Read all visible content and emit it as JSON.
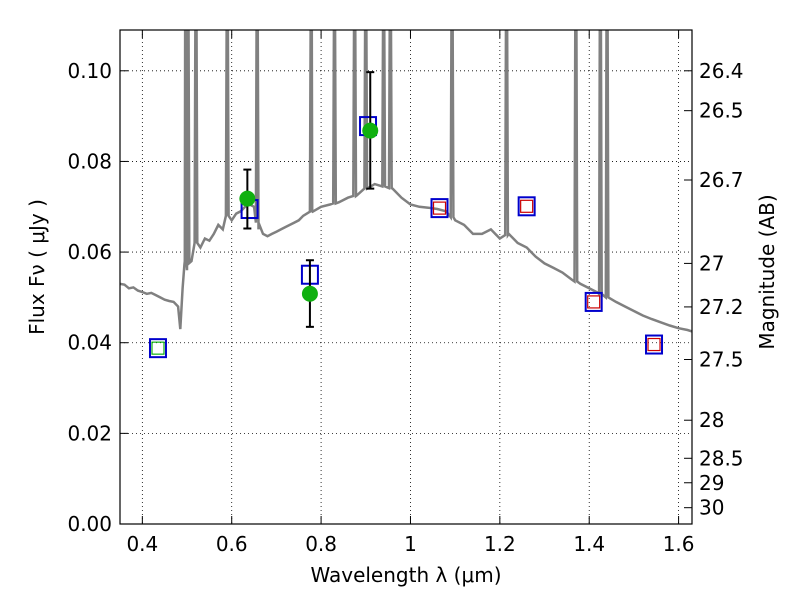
{
  "chart_data": {
    "type": "scatter",
    "xlabel": "Wavelength  λ (μm)",
    "ylabel": "Flux  Fν  ( μJy )",
    "y2label": "Magnitude (AB)",
    "xlim": [
      0.35,
      1.63
    ],
    "ylim": [
      0.0,
      0.109
    ],
    "grid": true,
    "x_ticks": [
      0.4,
      0.6,
      0.8,
      1.0,
      1.2,
      1.4,
      1.6
    ],
    "x_tick_labels": [
      "0.4",
      "0.6",
      "0.8",
      "1",
      "1.2",
      "1.4",
      "1.6"
    ],
    "y_ticks": [
      0.0,
      0.02,
      0.04,
      0.06,
      0.08,
      0.1
    ],
    "y_tick_labels": [
      "0.00",
      "0.02",
      "0.04",
      "0.06",
      "0.08",
      "0.10"
    ],
    "mag_ticks": [
      {
        "label": "26.4",
        "flux": 0.1
      },
      {
        "label": "26.5",
        "flux": 0.0912
      },
      {
        "label": "26.7",
        "flux": 0.0759
      },
      {
        "label": "27",
        "flux": 0.0575
      },
      {
        "label": "27.2",
        "flux": 0.0479
      },
      {
        "label": "27.5",
        "flux": 0.0363
      },
      {
        "label": "28",
        "flux": 0.0229
      },
      {
        "label": "28.5",
        "flux": 0.0145
      },
      {
        "label": "29",
        "flux": 0.0091
      },
      {
        "label": "30",
        "flux": 0.0036
      }
    ],
    "colors": {
      "spectrum": "#808080",
      "observed_points": "#10b010",
      "model_box": "#0000cc",
      "inner_green": "#10b010",
      "inner_red": "#cc0000",
      "error_bars": "#000000"
    },
    "spectrum": [
      [
        0.35,
        0.053
      ],
      [
        0.36,
        0.0528
      ],
      [
        0.37,
        0.052
      ],
      [
        0.38,
        0.0522
      ],
      [
        0.39,
        0.0515
      ],
      [
        0.4,
        0.0512
      ],
      [
        0.41,
        0.0508
      ],
      [
        0.42,
        0.051
      ],
      [
        0.43,
        0.0505
      ],
      [
        0.44,
        0.05
      ],
      [
        0.45,
        0.0495
      ],
      [
        0.46,
        0.0492
      ],
      [
        0.47,
        0.049
      ],
      [
        0.48,
        0.048
      ],
      [
        0.485,
        0.043
      ],
      [
        0.49,
        0.052
      ],
      [
        0.495,
        0.058
      ],
      [
        0.5,
        0.056
      ],
      [
        0.505,
        0.06
      ],
      [
        0.51,
        0.058
      ],
      [
        0.52,
        0.062
      ],
      [
        0.53,
        0.061
      ],
      [
        0.54,
        0.063
      ],
      [
        0.55,
        0.0625
      ],
      [
        0.56,
        0.064
      ],
      [
        0.57,
        0.066
      ],
      [
        0.58,
        0.065
      ],
      [
        0.59,
        0.068
      ],
      [
        0.6,
        0.067
      ],
      [
        0.61,
        0.0685
      ],
      [
        0.62,
        0.069
      ],
      [
        0.63,
        0.07
      ],
      [
        0.64,
        0.0705
      ],
      [
        0.65,
        0.07
      ],
      [
        0.66,
        0.065
      ],
      [
        0.67,
        0.064
      ],
      [
        0.68,
        0.0635
      ],
      [
        0.69,
        0.064
      ],
      [
        0.7,
        0.0645
      ],
      [
        0.71,
        0.065
      ],
      [
        0.72,
        0.0655
      ],
      [
        0.73,
        0.066
      ],
      [
        0.74,
        0.0665
      ],
      [
        0.75,
        0.067
      ],
      [
        0.76,
        0.068
      ],
      [
        0.78,
        0.069
      ],
      [
        0.8,
        0.07
      ],
      [
        0.82,
        0.0705
      ],
      [
        0.84,
        0.071
      ],
      [
        0.86,
        0.072
      ],
      [
        0.88,
        0.0725
      ],
      [
        0.9,
        0.074
      ],
      [
        0.92,
        0.075
      ],
      [
        0.94,
        0.0745
      ],
      [
        0.96,
        0.074
      ],
      [
        0.98,
        0.072
      ],
      [
        1.0,
        0.0705
      ],
      [
        1.02,
        0.07
      ],
      [
        1.04,
        0.0698
      ],
      [
        1.06,
        0.0695
      ],
      [
        1.08,
        0.069
      ],
      [
        1.1,
        0.067
      ],
      [
        1.12,
        0.066
      ],
      [
        1.14,
        0.064
      ],
      [
        1.16,
        0.064
      ],
      [
        1.18,
        0.065
      ],
      [
        1.2,
        0.063
      ],
      [
        1.22,
        0.064
      ],
      [
        1.24,
        0.062
      ],
      [
        1.26,
        0.061
      ],
      [
        1.28,
        0.059
      ],
      [
        1.3,
        0.0575
      ],
      [
        1.32,
        0.0565
      ],
      [
        1.34,
        0.0555
      ],
      [
        1.36,
        0.054
      ],
      [
        1.38,
        0.053
      ],
      [
        1.4,
        0.052
      ],
      [
        1.42,
        0.051
      ],
      [
        1.44,
        0.05
      ],
      [
        1.46,
        0.049
      ],
      [
        1.48,
        0.048
      ],
      [
        1.5,
        0.047
      ],
      [
        1.52,
        0.046
      ],
      [
        1.54,
        0.0452
      ],
      [
        1.56,
        0.0445
      ],
      [
        1.58,
        0.0438
      ],
      [
        1.6,
        0.0432
      ],
      [
        1.62,
        0.0428
      ],
      [
        1.63,
        0.0425
      ]
    ],
    "emission_lines": [
      0.497,
      0.502,
      0.52,
      0.59,
      0.657,
      0.778,
      0.83,
      0.875,
      0.9,
      0.94,
      0.955,
      1.093,
      1.215,
      1.37,
      1.425,
      1.44
    ],
    "observed_points": [
      {
        "x": 0.635,
        "y": 0.0718,
        "err_lo": 0.0652,
        "err_hi": 0.0782
      },
      {
        "x": 0.775,
        "y": 0.0508,
        "err_lo": 0.0435,
        "err_hi": 0.0582
      },
      {
        "x": 0.91,
        "y": 0.0868,
        "err_lo": 0.074,
        "err_hi": 0.0997
      }
    ],
    "model_points": [
      {
        "x": 0.435,
        "y": 0.0388,
        "inner": "green"
      },
      {
        "x": 0.64,
        "y": 0.0695,
        "inner": "none"
      },
      {
        "x": 0.775,
        "y": 0.055,
        "inner": "none"
      },
      {
        "x": 0.905,
        "y": 0.0878,
        "inner": "none"
      },
      {
        "x": 1.065,
        "y": 0.0697,
        "inner": "red"
      },
      {
        "x": 1.26,
        "y": 0.0701,
        "inner": "red"
      },
      {
        "x": 1.41,
        "y": 0.049,
        "inner": "red"
      },
      {
        "x": 1.545,
        "y": 0.0396,
        "inner": "red"
      }
    ]
  }
}
